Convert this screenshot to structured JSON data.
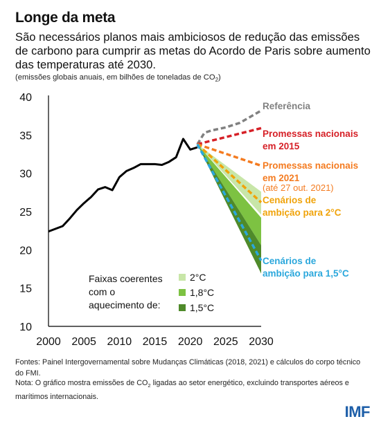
{
  "header": {
    "title": "Longe da meta",
    "subtitle": "São necessários planos mais ambiciosos de redução das emissões de carbono para cumprir as metas do Acordo de Paris sobre aumento das temperaturas até 2030.",
    "units_prefix": "(emissões globais anuais, em bilhões de toneladas de CO",
    "units_sub": "2",
    "units_suffix": ")"
  },
  "chart_data": {
    "type": "line",
    "xlim": [
      2000,
      2030
    ],
    "ylim": [
      10,
      40
    ],
    "x_ticks": [
      "2000",
      "2005",
      "2010",
      "2015",
      "2020",
      "2025",
      "2030"
    ],
    "y_ticks": [
      "10",
      "15",
      "20",
      "25",
      "30",
      "35",
      "40"
    ],
    "historical": {
      "color": "#000000",
      "x": [
        2000,
        2002,
        2003,
        2004,
        2005,
        2006,
        2007,
        2008,
        2009,
        2010,
        2011,
        2012,
        2013,
        2014,
        2015,
        2016,
        2017,
        2018,
        2019,
        2020,
        2021
      ],
      "y": [
        22.4,
        23.1,
        24.1,
        25.2,
        26.1,
        26.9,
        27.9,
        28.2,
        27.8,
        29.5,
        30.3,
        30.7,
        31.2,
        31.2,
        31.2,
        31.1,
        31.5,
        32.1,
        34.5,
        33.1,
        33.4
      ]
    },
    "bands": [
      {
        "name": "2°C",
        "color": "#c8e6a8",
        "x": [
          2021,
          2030
        ],
        "lower": [
          33.8,
          24.6
        ],
        "upper": [
          33.8,
          27.6
        ]
      },
      {
        "name": "1,8°C",
        "color": "#7dc242",
        "x": [
          2021,
          2030
        ],
        "lower": [
          33.8,
          20.6
        ],
        "upper": [
          33.8,
          24.2
        ]
      },
      {
        "name": "1,5°C",
        "color": "#4f8a2a",
        "x": [
          2021,
          2030
        ],
        "lower": [
          33.8,
          16.9
        ],
        "upper": [
          33.8,
          20.6
        ]
      }
    ],
    "projections": [
      {
        "name": "Referência",
        "label_lines": [
          "Referência"
        ],
        "color": "#808080",
        "x": [
          2021,
          2022,
          2023,
          2025,
          2027,
          2030
        ],
        "y": [
          33.8,
          35.3,
          35.6,
          36.0,
          36.6,
          38.2
        ]
      },
      {
        "name": "Promessas nacionais em 2015",
        "label_lines": [
          "Promessas nacionais",
          "em 2015"
        ],
        "color": "#d62027",
        "x": [
          2021,
          2030
        ],
        "y": [
          33.8,
          35.9
        ]
      },
      {
        "name": "Promessas nacionais em 2021",
        "label_lines": [
          "Promessas nacionais",
          "em 2021"
        ],
        "color": "#f47b20",
        "x": [
          2021,
          2030
        ],
        "y": [
          33.8,
          31.0
        ]
      },
      {
        "name": "Cenários de ambição para 2°C",
        "label_lines": [
          "Cenários de",
          "ambição para 2°C"
        ],
        "color": "#f0a30a",
        "x": [
          2021,
          2030
        ],
        "y": [
          33.8,
          26.2
        ]
      },
      {
        "name": "Cenários de ambição para 1,5°C",
        "label_lines": [
          "Cenários de",
          "ambição para 1,5°C"
        ],
        "color": "#2aa7dc",
        "x": [
          2021,
          2030
        ],
        "y": [
          33.8,
          18.6
        ]
      }
    ],
    "annotation_2021": "(até 27 out. 2021)",
    "legend_title_lines": [
      "Faixas coerentes",
      "com o",
      "aquecimento de:"
    ],
    "legend_items": [
      "2°C",
      "1,8°C",
      "1,5°C"
    ],
    "legend_position": "bottom-center",
    "grid": false
  },
  "footer": {
    "sources": "Fontes: Painel Intergovernamental sobre Mudanças Climáticas (2018, 2021) e cálculos do corpo técnico do FMI.",
    "note_prefix": "Nota: O gráfico mostra emissões de CO",
    "note_sub": "2",
    "note_suffix": " ligadas ao setor energético, excluindo transportes aéreos e marítimos internacionais."
  },
  "brand": {
    "logo_text": "IMF",
    "color": "#1d5ea8"
  }
}
